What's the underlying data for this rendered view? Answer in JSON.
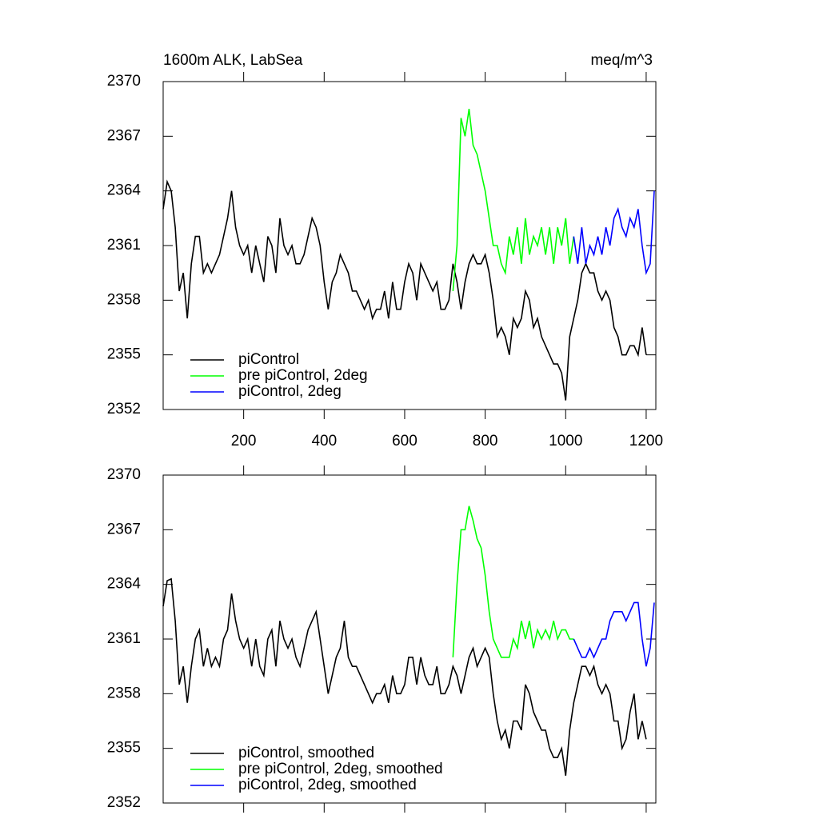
{
  "chart_data": [
    {
      "type": "line",
      "title": "1600m ALK, LabSea",
      "units": "meq/m^3",
      "legend": "lower left",
      "xlim": [
        0,
        1224
      ],
      "xticks": [
        200,
        400,
        600,
        800,
        1000,
        1200
      ],
      "xtick_labels": true,
      "ylim": [
        2352,
        2370
      ],
      "yticks": [
        2352,
        2355,
        2358,
        2361,
        2364,
        2367,
        2370
      ],
      "series": [
        {
          "name": "piControl",
          "color": "#000000",
          "x": [
            0,
            10,
            20,
            30,
            40,
            50,
            60,
            70,
            80,
            90,
            100,
            110,
            120,
            130,
            140,
            150,
            160,
            170,
            180,
            190,
            200,
            210,
            220,
            230,
            240,
            250,
            260,
            270,
            280,
            290,
            300,
            310,
            320,
            330,
            340,
            350,
            360,
            370,
            380,
            390,
            400,
            410,
            420,
            430,
            440,
            450,
            460,
            470,
            480,
            490,
            500,
            510,
            520,
            530,
            540,
            550,
            560,
            570,
            580,
            590,
            600,
            610,
            620,
            630,
            640,
            650,
            660,
            670,
            680,
            690,
            700,
            710,
            720,
            730,
            740,
            750,
            760,
            770,
            780,
            790,
            800,
            810,
            820,
            830,
            840,
            850,
            860,
            870,
            880,
            890,
            900,
            910,
            920,
            930,
            940,
            950,
            960,
            970,
            980,
            990,
            1000,
            1010,
            1020,
            1030,
            1040,
            1050,
            1060,
            1070,
            1080,
            1090,
            1100,
            1110,
            1120,
            1130,
            1140,
            1150,
            1160,
            1170,
            1180,
            1190,
            1200
          ],
          "values": [
            2363,
            2364.5,
            2364,
            2362,
            2358.5,
            2359.5,
            2357,
            2360,
            2361.5,
            2361.5,
            2359.5,
            2360,
            2359.5,
            2360,
            2360.5,
            2361.5,
            2362.5,
            2364,
            2362,
            2361,
            2360.5,
            2361,
            2359.5,
            2361,
            2360,
            2359,
            2361.5,
            2361,
            2359.5,
            2362.5,
            2361,
            2360.5,
            2361,
            2360,
            2360,
            2360.5,
            2361.5,
            2362.5,
            2362,
            2361,
            2359,
            2357.5,
            2359,
            2359.5,
            2360.5,
            2360,
            2359.5,
            2358.5,
            2358.5,
            2358,
            2357.5,
            2358,
            2357,
            2357.5,
            2357.5,
            2358.5,
            2357,
            2359,
            2357.5,
            2357.5,
            2359,
            2360,
            2359.5,
            2358,
            2360,
            2359.5,
            2359,
            2358.5,
            2359,
            2357.5,
            2357.5,
            2358,
            2360,
            2359,
            2357.5,
            2359,
            2360,
            2360.5,
            2360,
            2360,
            2360.5,
            2359.5,
            2358,
            2356,
            2356.5,
            2356,
            2355,
            2357,
            2356.5,
            2357,
            2358.5,
            2358,
            2356.5,
            2357,
            2356,
            2355.5,
            2355,
            2354.5,
            2354.5,
            2354,
            2352.5,
            2356,
            2357,
            2358,
            2359.5,
            2360,
            2359.5,
            2359.5,
            2358.5,
            2358,
            2358.5,
            2358,
            2356.5,
            2356,
            2355,
            2355,
            2355.5,
            2355.5,
            2355,
            2356.5,
            2355
          ]
        },
        {
          "name": "pre piControl, 2deg",
          "color": "#00ff00",
          "x": [
            720,
            730,
            740,
            750,
            760,
            770,
            780,
            790,
            800,
            810,
            820,
            830,
            840,
            850,
            860,
            870,
            880,
            890,
            900,
            910,
            920,
            930,
            940,
            950,
            960,
            970,
            980,
            990,
            1000,
            1010,
            1020
          ],
          "values": [
            2358.5,
            2361,
            2368,
            2367,
            2368.5,
            2366.5,
            2366,
            2365,
            2364,
            2362.5,
            2361,
            2361,
            2360,
            2359.5,
            2361.5,
            2360.5,
            2362,
            2360,
            2362.5,
            2360.5,
            2361.5,
            2361,
            2362,
            2360.5,
            2362,
            2360,
            2362,
            2361,
            2362.5,
            2360,
            2361.5
          ]
        },
        {
          "name": "piControl, 2deg",
          "color": "#0000ff",
          "x": [
            1020,
            1030,
            1040,
            1050,
            1060,
            1070,
            1080,
            1090,
            1100,
            1110,
            1120,
            1130,
            1140,
            1150,
            1160,
            1170,
            1180,
            1190,
            1200,
            1210,
            1220
          ],
          "values": [
            2361.5,
            2360,
            2362,
            2360,
            2361,
            2360.5,
            2361.5,
            2360.5,
            2362,
            2361,
            2362.5,
            2363,
            2362,
            2361.5,
            2362.5,
            2362,
            2363,
            2361,
            2359.5,
            2360,
            2364
          ]
        }
      ]
    },
    {
      "type": "line",
      "legend": "lower left",
      "xlim": [
        0,
        1224
      ],
      "xticks": [
        200,
        400,
        600,
        800,
        1000,
        1200
      ],
      "xtick_labels": false,
      "ylim": [
        2352,
        2370
      ],
      "yticks": [
        2352,
        2355,
        2358,
        2361,
        2364,
        2367,
        2370
      ],
      "series": [
        {
          "name": "piControl, smoothed",
          "color": "#000000",
          "x": [
            0,
            10,
            20,
            30,
            40,
            50,
            60,
            70,
            80,
            90,
            100,
            110,
            120,
            130,
            140,
            150,
            160,
            170,
            180,
            190,
            200,
            210,
            220,
            230,
            240,
            250,
            260,
            270,
            280,
            290,
            300,
            310,
            320,
            330,
            340,
            350,
            360,
            370,
            380,
            390,
            400,
            410,
            420,
            430,
            440,
            450,
            460,
            470,
            480,
            490,
            500,
            510,
            520,
            530,
            540,
            550,
            560,
            570,
            580,
            590,
            600,
            610,
            620,
            630,
            640,
            650,
            660,
            670,
            680,
            690,
            700,
            710,
            720,
            730,
            740,
            750,
            760,
            770,
            780,
            790,
            800,
            810,
            820,
            830,
            840,
            850,
            860,
            870,
            880,
            890,
            900,
            910,
            920,
            930,
            940,
            950,
            960,
            970,
            980,
            990,
            1000,
            1010,
            1020,
            1030,
            1040,
            1050,
            1060,
            1070,
            1080,
            1090,
            1100,
            1110,
            1120,
            1130,
            1140,
            1150,
            1160,
            1170,
            1180,
            1190,
            1200
          ],
          "values": [
            2362.8,
            2364.2,
            2364.3,
            2362,
            2358.5,
            2359.5,
            2357.5,
            2359.5,
            2361,
            2361.5,
            2359.5,
            2360.5,
            2359.5,
            2360,
            2359.5,
            2361,
            2361.5,
            2363.5,
            2362,
            2361,
            2360.5,
            2361,
            2359.5,
            2361,
            2359.5,
            2359,
            2361,
            2361.5,
            2359.5,
            2362,
            2361,
            2360.5,
            2361,
            2360,
            2359.5,
            2360.5,
            2361.5,
            2362,
            2362.5,
            2361,
            2359.5,
            2358,
            2359,
            2360,
            2360.5,
            2362,
            2360,
            2359.5,
            2359.5,
            2359,
            2358.5,
            2358,
            2357.5,
            2358,
            2358,
            2358.5,
            2357.5,
            2359,
            2358,
            2358,
            2358.5,
            2360,
            2360,
            2358.5,
            2360,
            2359,
            2358.5,
            2358.5,
            2359.5,
            2358,
            2358,
            2358.5,
            2359.5,
            2359,
            2358,
            2359,
            2360,
            2360.5,
            2359.5,
            2360,
            2360.5,
            2360,
            2358,
            2356.5,
            2355.5,
            2356,
            2355,
            2356.5,
            2356.5,
            2356,
            2358.5,
            2358,
            2357,
            2356.5,
            2356,
            2356,
            2355,
            2354.5,
            2354.5,
            2355,
            2353.5,
            2356,
            2357.5,
            2358.5,
            2359.5,
            2359.5,
            2359,
            2359.5,
            2358.5,
            2358,
            2358.5,
            2358,
            2356.5,
            2356.5,
            2355,
            2355.5,
            2357,
            2358,
            2355.5,
            2356.5,
            2355.5
          ]
        },
        {
          "name": "pre piControl, 2deg, smoothed",
          "color": "#00ff00",
          "x": [
            720,
            730,
            740,
            750,
            760,
            770,
            780,
            790,
            800,
            810,
            820,
            830,
            840,
            850,
            860,
            870,
            880,
            890,
            900,
            910,
            920,
            930,
            940,
            950,
            960,
            970,
            980,
            990,
            1000,
            1010,
            1020
          ],
          "values": [
            2360,
            2364,
            2367,
            2367,
            2368.3,
            2367.5,
            2366.5,
            2366,
            2364.5,
            2362.5,
            2361,
            2360.5,
            2360,
            2360,
            2360,
            2361,
            2360.5,
            2362,
            2361,
            2362,
            2360.5,
            2361.5,
            2361,
            2361.5,
            2361,
            2362,
            2361,
            2361.5,
            2361.5,
            2361,
            2361
          ]
        },
        {
          "name": "piControl, 2deg, smoothed",
          "color": "#0000ff",
          "x": [
            1020,
            1030,
            1040,
            1050,
            1060,
            1070,
            1080,
            1090,
            1100,
            1110,
            1120,
            1130,
            1140,
            1150,
            1160,
            1170,
            1180,
            1190,
            1200,
            1210,
            1220
          ],
          "values": [
            2361,
            2360.5,
            2360,
            2360,
            2360.5,
            2360,
            2360.5,
            2361,
            2361,
            2362,
            2362.5,
            2362.5,
            2362.5,
            2362,
            2362.5,
            2363,
            2363,
            2361,
            2359.5,
            2360.5,
            2363
          ]
        }
      ]
    }
  ]
}
